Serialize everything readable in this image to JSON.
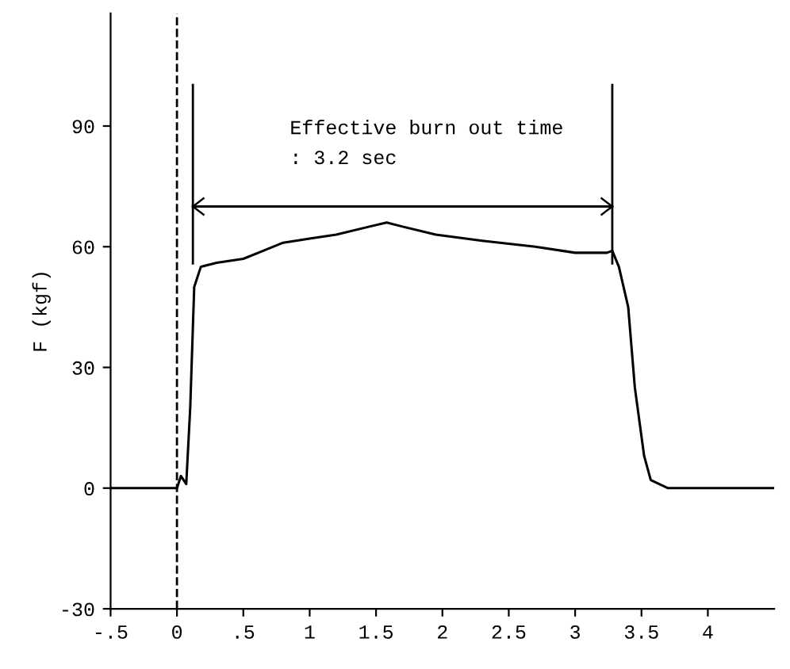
{
  "chart_data": {
    "type": "line",
    "ylabel": "F (kgf)",
    "xlim": [
      -0.5,
      4.5
    ],
    "ylim": [
      -30,
      118
    ],
    "xticks": [
      {
        "value": -0.5,
        "label": "-.5"
      },
      0,
      {
        "value": 0.5,
        "label": ".5"
      },
      1,
      1.5,
      2,
      2.5,
      3,
      3.5,
      4
    ],
    "yticks": [
      -30,
      0,
      30,
      60,
      90
    ],
    "x": [
      -0.5,
      -0.2,
      0.0,
      0.03,
      0.07,
      0.1,
      0.13,
      0.18,
      0.3,
      0.5,
      0.65,
      0.8,
      1.0,
      1.2,
      1.45,
      1.58,
      1.7,
      1.95,
      2.3,
      2.7,
      3.0,
      3.24,
      3.28,
      3.33,
      3.4,
      3.45,
      3.52,
      3.57,
      3.7,
      4.0,
      4.5
    ],
    "series": [
      {
        "color": "#000000",
        "values": [
          0,
          0,
          0,
          3,
          1,
          20,
          50,
          55,
          56,
          57,
          59,
          61,
          62,
          63,
          65,
          66,
          65,
          63,
          61.5,
          60,
          58.5,
          58.5,
          59,
          55,
          45,
          25,
          8,
          2,
          0,
          0,
          0
        ]
      },
      {
        "color": "#000000",
        "x": [
          0.12,
          3.28
        ],
        "values": [
          70,
          70
        ]
      }
    ],
    "ref_lines": [
      {
        "axis": "x",
        "value": 0,
        "line_style": "dashed",
        "color": "#000000"
      },
      {
        "axis": "x",
        "value": 0.12,
        "line_style": "solid",
        "color": "#000000"
      },
      {
        "axis": "x",
        "value": 3.28,
        "line_style": "solid",
        "color": "#000000"
      }
    ],
    "annotations": [
      "Effective burn out time\n: 3.2 sec"
    ],
    "grid": false,
    "marker": "none",
    "line_style": "solid"
  }
}
